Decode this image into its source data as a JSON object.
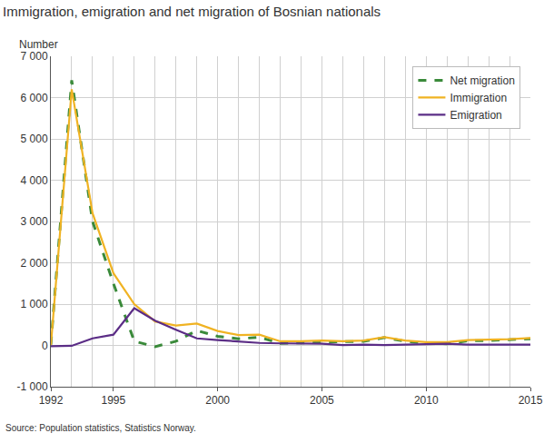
{
  "chart_data": {
    "type": "line",
    "title": "Immigration, emigration and net migration of Bosnian nationals",
    "ylabel": "Number",
    "source": "Source: Population statistics, Statistics Norway.",
    "x": [
      1992,
      1993,
      1994,
      1995,
      1996,
      1997,
      1998,
      1999,
      2000,
      2001,
      2002,
      2003,
      2004,
      2005,
      2006,
      2007,
      2008,
      2009,
      2010,
      2011,
      2012,
      2013,
      2014,
      2015
    ],
    "series": [
      {
        "name": "Net migration",
        "color": "#3a8a3a",
        "line_style": "dashed",
        "values": [
          20,
          6420,
          3000,
          1500,
          100,
          -30,
          100,
          360,
          220,
          160,
          200,
          50,
          60,
          80,
          90,
          100,
          190,
          100,
          50,
          40,
          110,
          120,
          140,
          160
        ]
      },
      {
        "name": "Immigration",
        "color": "#f0b323",
        "line_style": "solid",
        "values": [
          0,
          6200,
          3200,
          1750,
          1000,
          580,
          480,
          530,
          350,
          250,
          260,
          100,
          100,
          120,
          100,
          120,
          200,
          120,
          80,
          80,
          130,
          140,
          150,
          180
        ]
      },
      {
        "name": "Emigration",
        "color": "#5b2d86",
        "line_style": "solid",
        "values": [
          -20,
          -10,
          170,
          260,
          900,
          600,
          380,
          170,
          130,
          90,
          60,
          50,
          40,
          40,
          10,
          20,
          10,
          20,
          30,
          40,
          20,
          20,
          10,
          20
        ]
      }
    ],
    "xlim": [
      1992,
      2015
    ],
    "xticks": [
      1992,
      1995,
      2000,
      2005,
      2010,
      2015
    ],
    "ylim": [
      -1000,
      7000
    ],
    "yticks": [
      {
        "value": -1000,
        "label": "-1 000"
      },
      0,
      {
        "value": 1000,
        "label": "1 000"
      },
      {
        "value": 2000,
        "label": "2 000"
      },
      {
        "value": 3000,
        "label": "3 000"
      },
      {
        "value": 4000,
        "label": "4 000"
      },
      {
        "value": 5000,
        "label": "5 000"
      },
      {
        "value": 6000,
        "label": "6 000"
      },
      {
        "value": 7000,
        "label": "7 000"
      }
    ],
    "grid": true,
    "legend": "upper right"
  }
}
